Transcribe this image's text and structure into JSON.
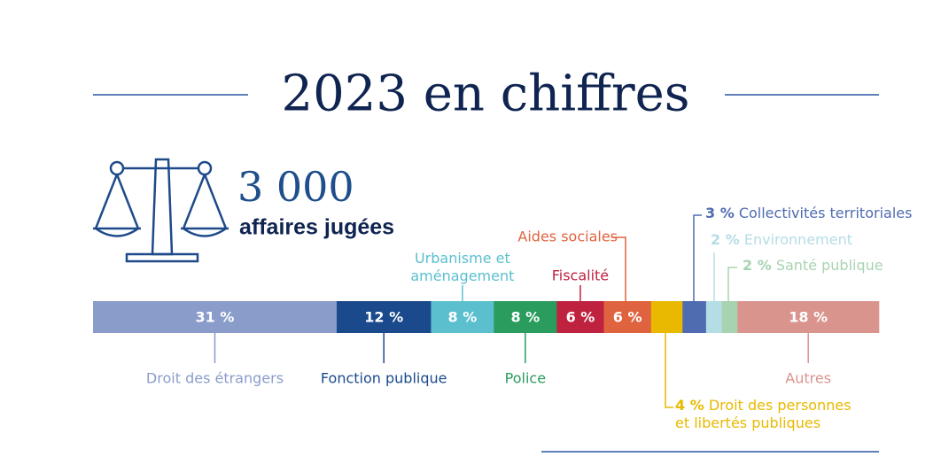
{
  "chart_data": {
    "type": "stacked-bar",
    "title": "2023 en chiffres",
    "headline": {
      "value": "3 000",
      "label": "affaires jugées"
    },
    "categories": [
      "Droit des étrangers",
      "Fonction publique",
      "Urbanisme et\naménagement",
      "Police",
      "Fiscalité",
      "Aides sociales",
      "Droit des personnes\net libertés publiques",
      "Collectivités territoriales",
      "Environnement",
      "Santé publique",
      "Autres"
    ],
    "values": [
      31,
      12,
      8,
      8,
      6,
      6,
      4,
      3,
      2,
      2,
      18
    ],
    "value_labels": [
      "31 %",
      "12 %",
      "8 %",
      "8 %",
      "6 %",
      "6 %",
      "4 %",
      "3 %",
      "2 %",
      "2 %",
      "18 %"
    ],
    "colors": [
      "#8a9cca",
      "#1a4a8c",
      "#5bbfce",
      "#2a9c5e",
      "#bf223f",
      "#e0633f",
      "#e8b900",
      "#4f6cb0",
      "#b5dde5",
      "#a8d3b1",
      "#d9948e"
    ]
  }
}
